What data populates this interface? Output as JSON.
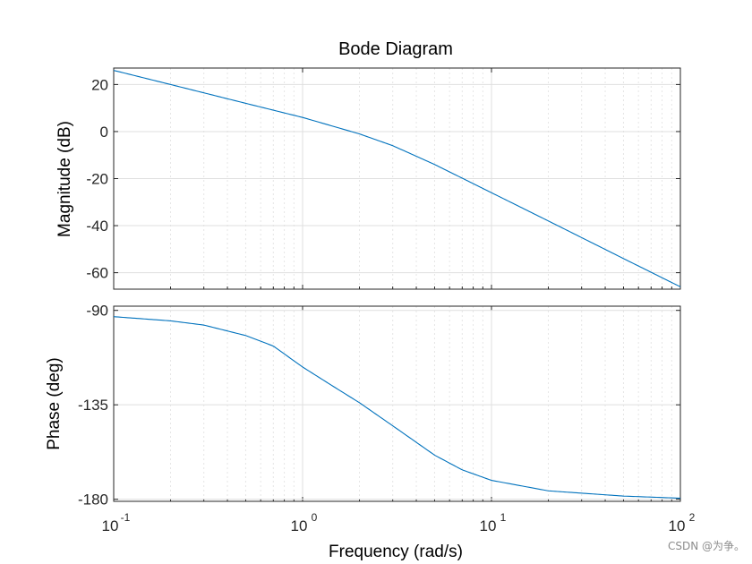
{
  "chart_data": {
    "type": "line",
    "title": "Bode Diagram",
    "xlabel": "Frequency  (rad/s)",
    "xscale": "log",
    "xlim": [
      0.1,
      100
    ],
    "x_ticks": [
      {
        "value": 0.1,
        "base": "10",
        "exp": "-1"
      },
      {
        "value": 1,
        "base": "10",
        "exp": "0"
      },
      {
        "value": 10,
        "base": "10",
        "exp": "1"
      },
      {
        "value": 100,
        "base": "10",
        "exp": "2"
      }
    ],
    "grid": true,
    "color": "#0072bd",
    "magnitude": {
      "ylabel": "Magnitude (dB)",
      "ylim": [
        -67,
        27
      ],
      "yticks": [
        20,
        0,
        -20,
        -40,
        -60
      ],
      "ytick_labels": [
        "20",
        "0",
        "-20",
        "-40",
        "-60"
      ],
      "series": [
        {
          "name": "Magnitude",
          "x": [
            0.1,
            0.2,
            0.5,
            1,
            2,
            3,
            5,
            10,
            20,
            50,
            100
          ],
          "values": [
            26,
            20,
            12,
            6,
            -1,
            -6,
            -14,
            -26,
            -38,
            -54,
            -66
          ]
        }
      ]
    },
    "phase": {
      "ylabel": "Phase (deg)",
      "ylim": [
        -181,
        -88
      ],
      "yticks": [
        -90,
        -135,
        -180
      ],
      "ytick_labels": [
        "-90",
        "-135",
        "-180"
      ],
      "series": [
        {
          "name": "Phase",
          "x": [
            0.1,
            0.2,
            0.3,
            0.5,
            0.7,
            1,
            1.5,
            2,
            3,
            5,
            7,
            10,
            20,
            50,
            100
          ],
          "values": [
            -93,
            -95,
            -97,
            -102,
            -107,
            -117,
            -127,
            -134,
            -145,
            -159,
            -166,
            -171,
            -176,
            -178.5,
            -179.5
          ]
        }
      ]
    }
  },
  "watermark": "CSDN @为争。"
}
